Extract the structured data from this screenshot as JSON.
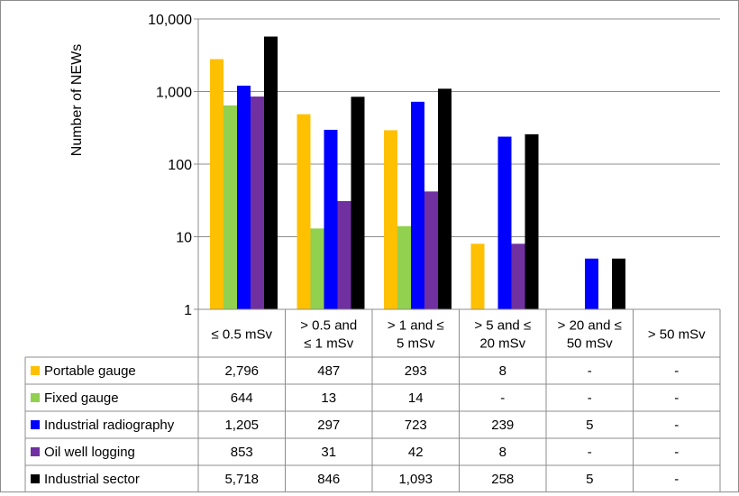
{
  "chart_data": {
    "type": "bar",
    "ylabel": "Number of NEWs",
    "yscale": "log",
    "ylim": [
      1,
      10000
    ],
    "yticks": [
      1,
      10,
      100,
      1000,
      10000
    ],
    "ytick_labels": [
      "1",
      "10",
      "100",
      "1,000",
      "10,000"
    ],
    "grid": "horizontal",
    "legend": "data-table",
    "categories": [
      "≤ 0.5 mSv",
      "> 0.5 and ≤ 1 mSv",
      "> 1 and ≤ 5 mSv",
      "> 5 and ≤ 20 mSv",
      "> 20 and ≤ 50 mSv",
      "> 50 mSv"
    ],
    "category_lines": [
      [
        "≤ 0.5 mSv"
      ],
      [
        "> 0.5 and",
        "≤ 1 mSv"
      ],
      [
        "> 1 and ≤",
        "5 mSv"
      ],
      [
        "> 5 and ≤",
        "20 mSv"
      ],
      [
        "> 20 and ≤",
        "50 mSv"
      ],
      [
        "> 50 mSv"
      ]
    ],
    "series": [
      {
        "name": "Portable gauge",
        "color": "#ffc000",
        "values": [
          2796,
          487,
          293,
          8,
          null,
          null
        ],
        "labels": [
          "2,796",
          "487",
          "293",
          "8",
          "-",
          "-"
        ]
      },
      {
        "name": "Fixed gauge",
        "color": "#92d050",
        "values": [
          644,
          13,
          14,
          null,
          null,
          null
        ],
        "labels": [
          "644",
          "13",
          "14",
          "-",
          "-",
          "-"
        ]
      },
      {
        "name": "Industrial radiography",
        "color": "#0000ff",
        "values": [
          1205,
          297,
          723,
          239,
          5,
          null
        ],
        "labels": [
          "1,205",
          "297",
          "723",
          "239",
          "5",
          "-"
        ]
      },
      {
        "name": "Oil well logging",
        "color": "#7030a0",
        "values": [
          853,
          31,
          42,
          8,
          null,
          null
        ],
        "labels": [
          "853",
          "31",
          "42",
          "8",
          "-",
          "-"
        ]
      },
      {
        "name": "Industrial sector",
        "color": "#000000",
        "values": [
          5718,
          846,
          1093,
          258,
          5,
          null
        ],
        "labels": [
          "5,718",
          "846",
          "1,093",
          "258",
          "5",
          "-"
        ]
      }
    ]
  }
}
